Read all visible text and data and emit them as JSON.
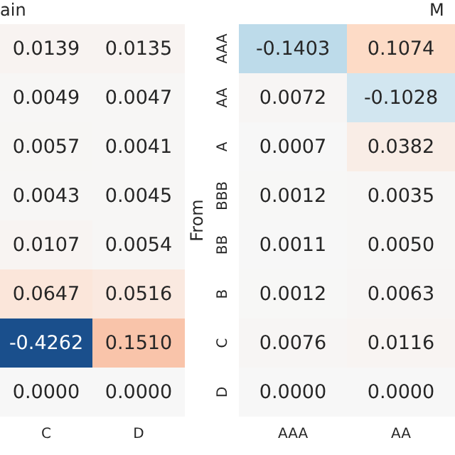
{
  "chart_data": [
    {
      "type": "heatmap",
      "title": "ain",
      "categories": [
        "C",
        "D"
      ],
      "y_categories": [
        null,
        null,
        null,
        null,
        null,
        null,
        null,
        null
      ],
      "tick_labels": "x",
      "data_labels": true,
      "cells": [
        [
          0.0139,
          0.0135
        ],
        [
          0.0049,
          0.0047
        ],
        [
          0.0057,
          0.0041
        ],
        [
          0.0043,
          0.0045
        ],
        [
          0.0107,
          0.0054
        ],
        [
          0.0647,
          0.0516
        ],
        [
          -0.4262,
          0.151
        ],
        [
          0.0,
          0.0
        ]
      ],
      "cell_labels": [
        [
          "0.0139",
          "0.0135"
        ],
        [
          "0.0049",
          "0.0047"
        ],
        [
          "0.0057",
          "0.0041"
        ],
        [
          "0.0043",
          "0.0045"
        ],
        [
          "0.0107",
          "0.0054"
        ],
        [
          "0.0647",
          "0.0516"
        ],
        [
          "-0.4262",
          "0.1510"
        ],
        [
          "0.0000",
          "0.0000"
        ]
      ]
    },
    {
      "type": "heatmap",
      "title": "M",
      "ylabel": "From",
      "categories": [
        "AAA",
        "AA"
      ],
      "y_categories": [
        "AAA",
        "AA",
        "A",
        "BBB",
        "BB",
        "B",
        "C",
        "D"
      ],
      "data_labels": true,
      "cells": [
        [
          -0.1403,
          0.1074
        ],
        [
          0.0072,
          -0.1028
        ],
        [
          0.0007,
          0.0382
        ],
        [
          0.0012,
          0.0035
        ],
        [
          0.0011,
          0.005
        ],
        [
          0.0012,
          0.0063
        ],
        [
          0.0076,
          0.0116
        ],
        [
          0.0,
          0.0
        ]
      ],
      "cell_labels": [
        [
          "-0.1403",
          "0.1074"
        ],
        [
          "0.0072",
          "-0.1028"
        ],
        [
          "0.0007",
          "0.0382"
        ],
        [
          "0.0012",
          "0.0035"
        ],
        [
          "0.0011",
          "0.0050"
        ],
        [
          "0.0012",
          "0.0063"
        ],
        [
          "0.0076",
          "0.0116"
        ],
        [
          "0.0000",
          "0.0000"
        ]
      ]
    }
  ]
}
